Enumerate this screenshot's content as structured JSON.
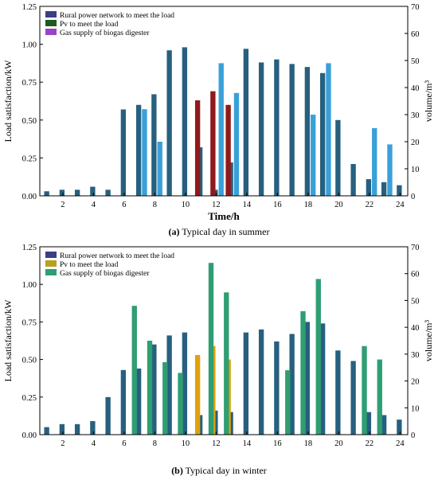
{
  "colors": {
    "rural": "#27607f",
    "rural_light": "#3b82b0",
    "summer_pv": "#8f1a1a",
    "summer_gas": "#3aa0d8",
    "winter_pv": "#e0a10f",
    "winter_gas": "#2f9e73",
    "legend_rural": "#3a3f86",
    "legend_pv_summer": "#1e5a1e",
    "legend_gas_summer": "#9a43c8",
    "legend_pv_winter": "#b8a020",
    "legend_gas_winter": "#2f9e73"
  },
  "chart_data": [
    {
      "type": "bar",
      "panel_label": "(a)",
      "caption": "Typical day in summer",
      "xlabel": "Time/h",
      "ylabel": "Load satisfaction/kW",
      "ylabel_right": "volume/m³",
      "xlim": [
        0.5,
        24.5
      ],
      "ylim": [
        0,
        1.25
      ],
      "ylim_right": [
        0,
        70
      ],
      "x_ticks": [
        "2",
        "4",
        "6",
        "8",
        "10",
        "12",
        "14",
        "16",
        "18",
        "20",
        "22",
        "24"
      ],
      "y_ticks": [
        "0.00",
        "0.25",
        "0.50",
        "0.75",
        "1.00",
        "1.25"
      ],
      "y_ticks_right": [
        "0",
        "10",
        "20",
        "30",
        "40",
        "50",
        "60",
        "70"
      ],
      "legend_position": "top-left",
      "series": [
        {
          "name": "Rural power network to meet the load",
          "axis": "left",
          "x": [
            1,
            2,
            3,
            4,
            5,
            6,
            7,
            8,
            9,
            10,
            11,
            12,
            13,
            14,
            15,
            16,
            17,
            18,
            19,
            20,
            21,
            22,
            23,
            24
          ],
          "values": [
            0.03,
            0.04,
            0.04,
            0.06,
            0.04,
            0.57,
            0.6,
            0.67,
            0.96,
            0.98,
            0.32,
            0.04,
            0.22,
            0.97,
            0.88,
            0.9,
            0.87,
            0.85,
            0.81,
            0.5,
            0.21,
            0.11,
            0.09,
            0.07
          ]
        },
        {
          "name": "Pv to meet the load",
          "axis": "left",
          "x": [
            11,
            12,
            13
          ],
          "values": [
            0.63,
            0.69,
            0.6
          ]
        },
        {
          "name": "Gas supply of biogas digester",
          "axis": "right",
          "x": [
            7,
            8,
            12,
            13,
            18,
            19,
            22,
            23
          ],
          "values": [
            32,
            20,
            49,
            38,
            30,
            49,
            25,
            19
          ]
        }
      ]
    },
    {
      "type": "bar",
      "panel_label": "(b)",
      "caption": "Typical day in winter",
      "xlabel": "",
      "ylabel": "Load satisfaction/kW",
      "ylabel_right": "volume/m³",
      "xlim": [
        0.5,
        24.5
      ],
      "ylim": [
        0,
        1.25
      ],
      "ylim_right": [
        0,
        70
      ],
      "x_ticks": [
        "2",
        "4",
        "6",
        "8",
        "10",
        "12",
        "14",
        "16",
        "18",
        "20",
        "22",
        "24"
      ],
      "y_ticks": [
        "0.00",
        "0.25",
        "0.50",
        "0.75",
        "1.00",
        "1.25"
      ],
      "y_ticks_right": [
        "0",
        "10",
        "20",
        "30",
        "40",
        "50",
        "60",
        "70"
      ],
      "legend_position": "top-left",
      "series": [
        {
          "name": "Rural power network to meet the load",
          "axis": "left",
          "x": [
            1,
            2,
            3,
            4,
            5,
            6,
            7,
            8,
            9,
            10,
            11,
            12,
            13,
            14,
            15,
            16,
            17,
            18,
            19,
            20,
            21,
            22,
            23,
            24
          ],
          "values": [
            0.05,
            0.07,
            0.07,
            0.09,
            0.25,
            0.43,
            0.44,
            0.6,
            0.66,
            0.68,
            0.13,
            0.16,
            0.15,
            0.68,
            0.7,
            0.62,
            0.67,
            0.75,
            0.74,
            0.56,
            0.49,
            0.15,
            0.13,
            0.1
          ]
        },
        {
          "name": "Pv to meet the load",
          "axis": "left",
          "x": [
            11,
            12,
            13
          ],
          "values": [
            0.53,
            0.59,
            0.5
          ]
        },
        {
          "name": "Gas supply of biogas digester",
          "axis": "right",
          "x": [
            7,
            8,
            9,
            10,
            12,
            13,
            17,
            18,
            19,
            22,
            23
          ],
          "values": [
            48,
            35,
            27,
            23,
            64,
            53,
            24,
            46,
            58,
            33,
            28
          ]
        }
      ]
    }
  ]
}
